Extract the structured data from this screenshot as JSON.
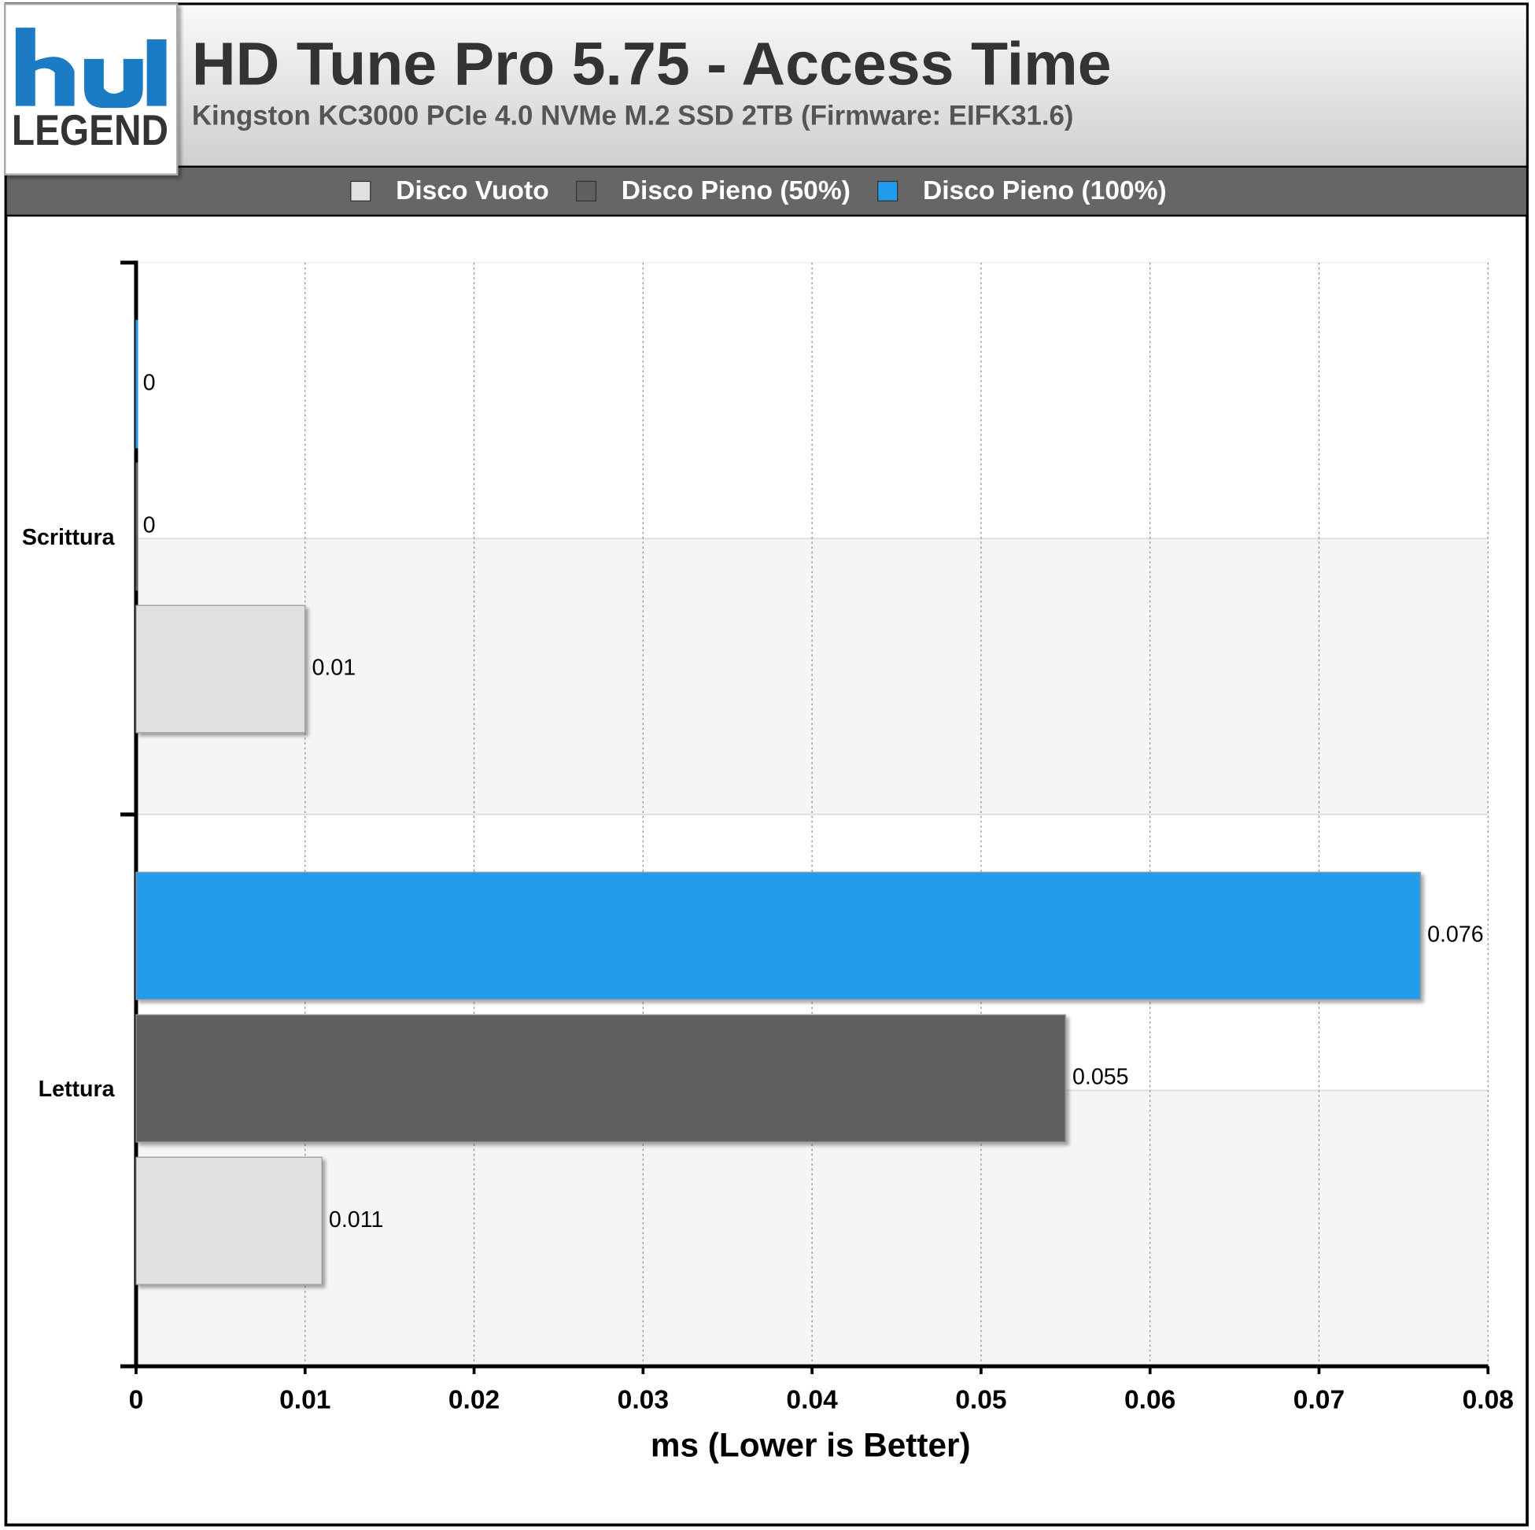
{
  "logo": {
    "text": "LEGEND"
  },
  "chart_data": {
    "type": "hbar",
    "title": "HD Tune Pro 5.75 - Access Time",
    "subtitle": "Kingston KC3000 PCIe 4.0 NVMe M.2 SSD 2TB (Firmware: EIFK31.6)",
    "x_label": "ms (Lower is Better)",
    "categories": [
      "Scrittura",
      "Lettura"
    ],
    "series": [
      {
        "name": "Disco Vuoto",
        "color": "#e0e0e0",
        "values": [
          0.01,
          0.011
        ]
      },
      {
        "name": "Disco Pieno (50%)",
        "color": "#606060",
        "values": [
          0,
          0.055
        ]
      },
      {
        "name": "Disco Pieno (100%)",
        "color": "#219ded",
        "values": [
          0,
          0.076
        ]
      }
    ],
    "xlim": [
      0,
      0.08
    ],
    "xticks": [
      0,
      0.01,
      0.02,
      0.03,
      0.04,
      0.05,
      0.06,
      0.07,
      0.08
    ],
    "grid": true
  }
}
